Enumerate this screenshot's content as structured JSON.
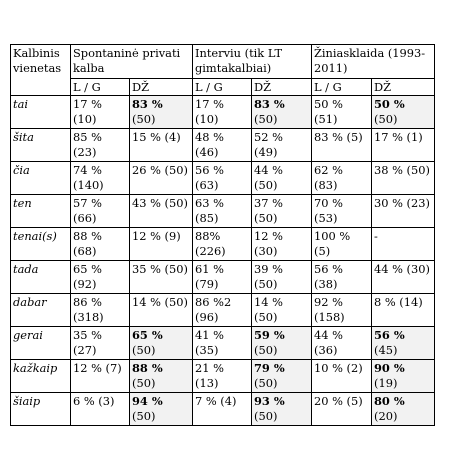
{
  "header": {
    "unit": "Kalbinis vienetas",
    "groups": [
      "Spontaninė privati kalba",
      "Interviu (tik LT gimtakalbiai)",
      "Žiniasklaida (1993-2011)"
    ],
    "sub": [
      "L / G",
      "DŽ",
      "L / G",
      "DŽ",
      "L / G",
      "DŽ"
    ]
  },
  "rows": [
    {
      "label": "tai",
      "cells": [
        {
          "v": "17 % (10)"
        },
        {
          "v": "83 %",
          "n": "(50)"
        },
        {
          "v": "17 % (10)"
        },
        {
          "v": "83 %",
          "n": "(50)"
        },
        {
          "v": "50 % (51)"
        },
        {
          "v": "50 %",
          "n": "(50)"
        }
      ]
    },
    {
      "label": "šita",
      "cells": [
        {
          "v": "85 % (23)"
        },
        {
          "v": "15 % (4)"
        },
        {
          "v": "48 % (46)"
        },
        {
          "v": "52 % (49)"
        },
        {
          "v": "83 % (5)"
        },
        {
          "v": "17 % (1)"
        }
      ]
    },
    {
      "label": "čia",
      "cells": [
        {
          "v": "74 % (140)"
        },
        {
          "v": "26 % (50)"
        },
        {
          "v": "56 % (63)"
        },
        {
          "v": "44 % (50)"
        },
        {
          "v": "62 % (83)"
        },
        {
          "v": "38 % (50)"
        }
      ]
    },
    {
      "label": "ten",
      "cells": [
        {
          "v": "57 % (66)"
        },
        {
          "v": "43 % (50)"
        },
        {
          "v": "63 % (85)"
        },
        {
          "v": "37 % (50)"
        },
        {
          "v": "70 % (53)"
        },
        {
          "v": "30 % (23)"
        }
      ]
    },
    {
      "label": "tenai(s)",
      "cells": [
        {
          "v": "88 % (68)"
        },
        {
          "v": "12 % (9)"
        },
        {
          "v": "88% (226)"
        },
        {
          "v": "12 % (30)"
        },
        {
          "v": "100 % (5)"
        },
        {
          "v": "-"
        }
      ]
    },
    {
      "label": "tada",
      "cells": [
        {
          "v": "65 % (92)"
        },
        {
          "v": "35 % (50)"
        },
        {
          "v": "61 % (79)"
        },
        {
          "v": "39 % (50)"
        },
        {
          "v": "56 % (38)"
        },
        {
          "v": "44 % (30)"
        }
      ]
    },
    {
      "label": "dabar",
      "cells": [
        {
          "v": "86 % (318)"
        },
        {
          "v": "14 % (50)"
        },
        {
          "v": "86 %2 (96)"
        },
        {
          "v": "14 % (50)"
        },
        {
          "v": "92 % (158)"
        },
        {
          "v": "8 % (14)"
        }
      ]
    },
    {
      "label": "gerai",
      "cells": [
        {
          "v": "35 % (27)"
        },
        {
          "v": "65 %",
          "n": "(50)"
        },
        {
          "v": "41 % (35)"
        },
        {
          "v": "59 %",
          "n": "(50)"
        },
        {
          "v": "44 % (36)"
        },
        {
          "v": "56 %",
          "n": "(45)"
        }
      ]
    },
    {
      "label": "kažkaip",
      "cells": [
        {
          "v": "12 % (7)"
        },
        {
          "v": "88 %",
          "n": "(50)"
        },
        {
          "v": "21 % (13)"
        },
        {
          "v": "79 %",
          "n": "(50)"
        },
        {
          "v": "10 % (2)"
        },
        {
          "v": "90 %",
          "n": "(19)"
        }
      ]
    },
    {
      "label": "šiaip",
      "cells": [
        {
          "v": "6 % (3)"
        },
        {
          "v": "94 %",
          "n": "(50)"
        },
        {
          "v": "7 % (4)"
        },
        {
          "v": "93 %",
          "n": "(50)"
        },
        {
          "v": "20 % (5)"
        },
        {
          "v": "80 %",
          "n": "(20)"
        }
      ]
    }
  ]
}
